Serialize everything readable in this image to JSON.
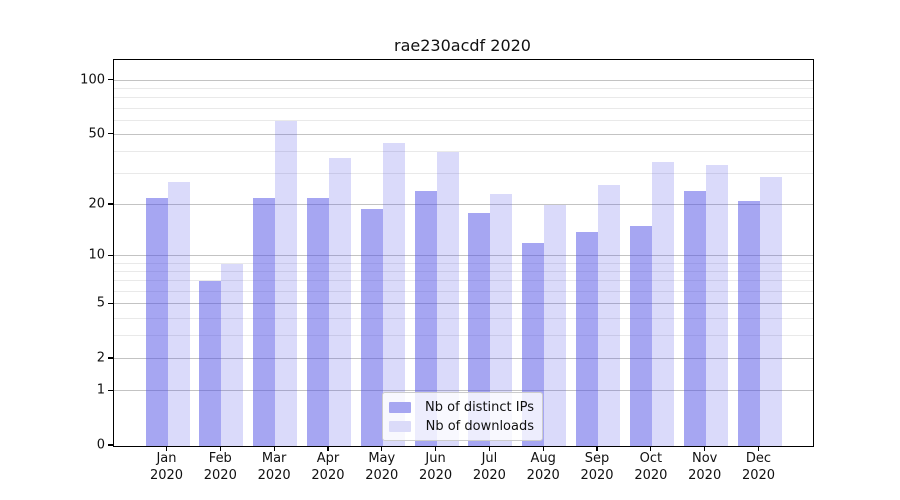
{
  "title": "rae230acdf 2020",
  "chart_data": {
    "type": "bar",
    "title": "rae230acdf 2020",
    "categories": [
      "Jan 2020",
      "Feb 2020",
      "Mar 2020",
      "Apr 2020",
      "May 2020",
      "Jun 2020",
      "Jul 2020",
      "Aug 2020",
      "Sep 2020",
      "Oct 2020",
      "Nov 2020",
      "Dec 2020"
    ],
    "x_tick_months": [
      "Jan",
      "Feb",
      "Mar",
      "Apr",
      "May",
      "Jun",
      "Jul",
      "Aug",
      "Sep",
      "Oct",
      "Nov",
      "Dec"
    ],
    "x_tick_year": "2020",
    "series": [
      {
        "name": "Nb of distinct IPs",
        "color": "#a6a6f1",
        "fill": "rgba(80,80,230,0.51)",
        "values": [
          22,
          7,
          22,
          22,
          19,
          24,
          18,
          12,
          14,
          15,
          24,
          21
        ]
      },
      {
        "name": "Nb of downloads",
        "color": "#dbdbf9",
        "fill": "rgba(80,80,230,0.21)",
        "values": [
          27,
          9,
          60,
          37,
          45,
          40,
          23,
          20,
          26,
          35,
          34,
          29
        ]
      }
    ],
    "yscale": "symlog_log10_1plusv",
    "ylim": [
      0,
      130
    ],
    "y_ticks": [
      100,
      50,
      20,
      10,
      5,
      2,
      1,
      0
    ],
    "y_minor_gridlines": [
      90,
      80,
      70,
      60,
      40,
      30,
      9,
      8,
      7,
      6,
      4,
      3
    ],
    "grid": true,
    "legend_position": "bottom-center"
  },
  "colors": {
    "grid_major": "#c3c3c3",
    "grid_minor": "#e9e9e9",
    "spine": "#000000",
    "background": "#ffffff",
    "legend_border": "#cccccc",
    "text": "#111111"
  }
}
